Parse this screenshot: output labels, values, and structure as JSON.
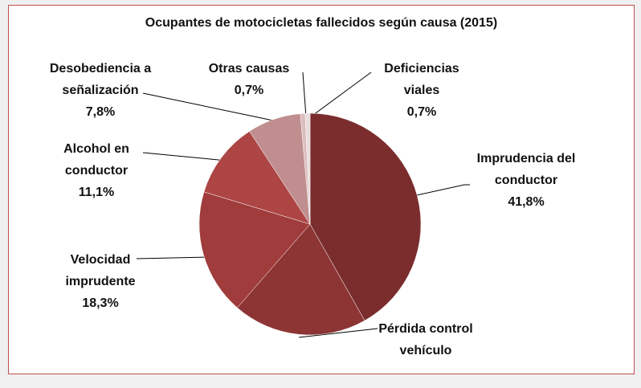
{
  "chart_data": {
    "type": "pie",
    "title": "Ocupantes de motocicletas fallecidos según causa (2015)",
    "categories": [
      "Imprudencia del conductor",
      "Pérdida control vehículo",
      "Velocidad imprudente",
      "Alcohol en conductor",
      "Desobediencia a señalización",
      "Otras causas",
      "Deficiencias viales"
    ],
    "values": [
      41.8,
      19.6,
      18.3,
      11.1,
      7.8,
      0.7,
      0.7
    ],
    "value_labels": [
      "41,8%",
      null,
      "18,3%",
      "11,1%",
      "7,8%",
      "0,7%",
      "0,7%"
    ],
    "colors": [
      "#7b2d2d",
      "#8d3434",
      "#a03c3c",
      "#ad4545",
      "#c08e8e",
      "#dbbdbd",
      "#e9dcdc"
    ]
  }
}
